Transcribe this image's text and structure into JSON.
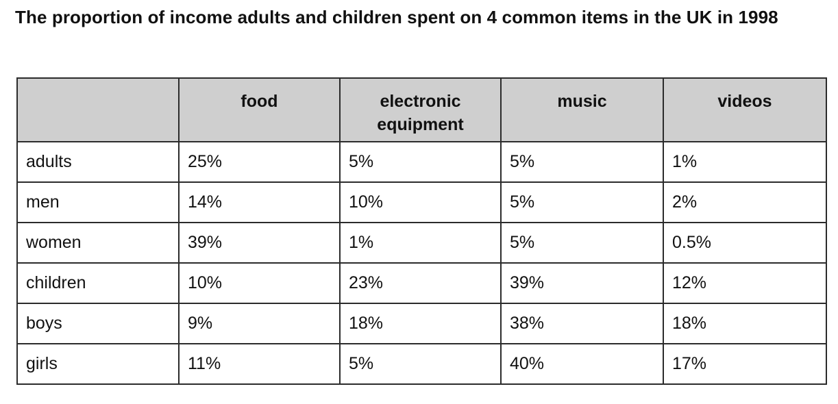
{
  "chart_data": {
    "type": "table",
    "title": "The proportion of income adults and children spent on 4 common items in the UK in 1998",
    "columns": [
      "",
      "food",
      "electronic equipment",
      "music",
      "videos"
    ],
    "rows": [
      {
        "label": "adults",
        "cells": [
          "25%",
          "5%",
          "5%",
          "1%"
        ]
      },
      {
        "label": "men",
        "cells": [
          "14%",
          "10%",
          "5%",
          "2%"
        ]
      },
      {
        "label": "women",
        "cells": [
          "39%",
          "1%",
          "5%",
          "0.5%"
        ]
      },
      {
        "label": "children",
        "cells": [
          "10%",
          "23%",
          "39%",
          "12%"
        ]
      },
      {
        "label": "boys",
        "cells": [
          "9%",
          "18%",
          "38%",
          "18%"
        ]
      },
      {
        "label": "girls",
        "cells": [
          "11%",
          "5%",
          "40%",
          "17%"
        ]
      }
    ]
  },
  "colors": {
    "header_background": "#cfcfcf",
    "border": "#2b2b2b",
    "text": "#111111"
  }
}
